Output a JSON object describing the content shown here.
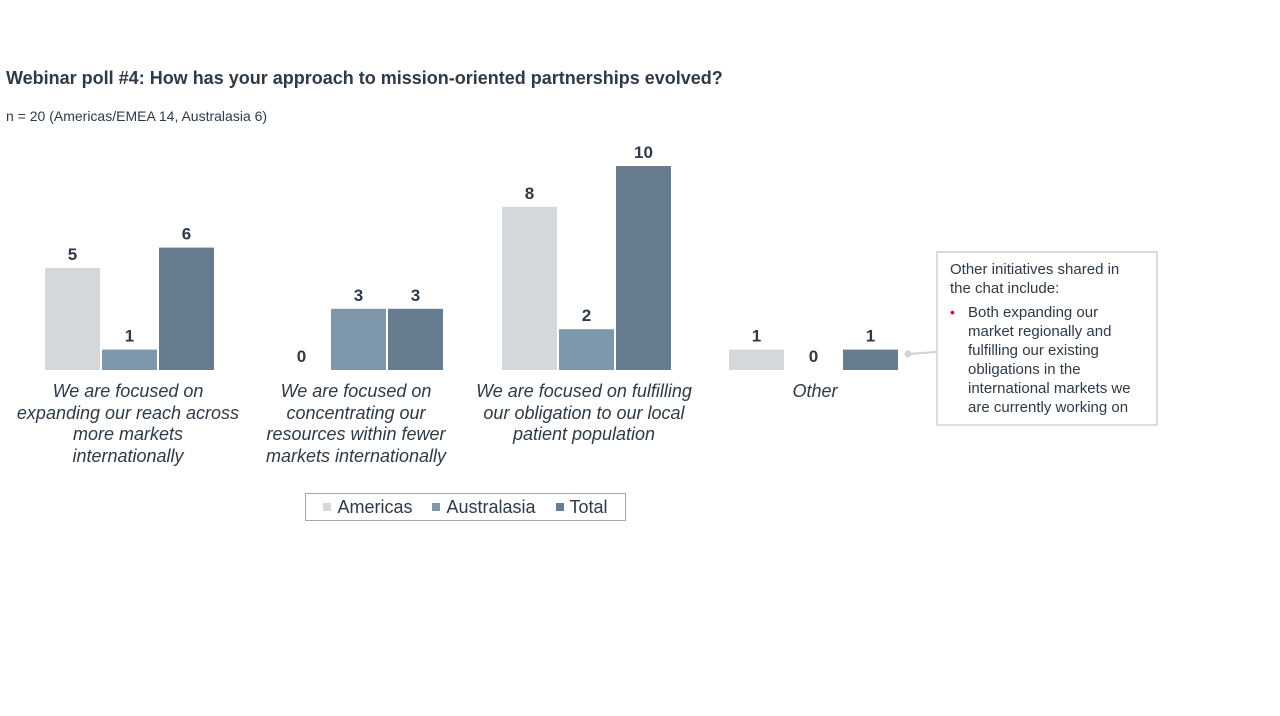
{
  "title": "Webinar poll #4: How has your approach to mission-oriented partnerships evolved?",
  "subtitle": "n = 20 (Americas/EMEA 14, Australasia 6)",
  "colors": {
    "Americas": "#d5d8da",
    "Australasia": "#7f97aa",
    "Total": "#687c90",
    "connector": "#d0d3d6"
  },
  "chart_data": {
    "type": "bar",
    "categories": [
      "We are focused on expanding our reach across more markets internationally",
      "We are focused on concentrating our resources within fewer markets internationally",
      "We are focused on fulfilling our obligation to our local patient population",
      "Other"
    ],
    "series": [
      {
        "name": "Americas",
        "values": [
          5,
          0,
          8,
          1
        ]
      },
      {
        "name": "Australasia",
        "values": [
          1,
          3,
          2,
          0
        ]
      },
      {
        "name": "Total",
        "values": [
          6,
          3,
          10,
          1
        ]
      }
    ],
    "ylim": [
      0,
      10
    ],
    "grid": false,
    "legend": "bottom-center",
    "data_labels": true
  },
  "category_label_lines": [
    [
      "We are focused on",
      "expanding our reach across",
      "more markets",
      "internationally"
    ],
    [
      "We are focused on",
      "concentrating our",
      "resources within fewer",
      "markets internationally"
    ],
    [
      "We are focused on fulfilling",
      "our obligation to our local",
      "patient population"
    ],
    [
      "Other"
    ]
  ],
  "note": {
    "heading": "Other initiatives shared in the chat include:",
    "bullets": [
      "Both expanding our market regionally and fulfilling our existing obligations in the international markets we are currently working on"
    ]
  }
}
